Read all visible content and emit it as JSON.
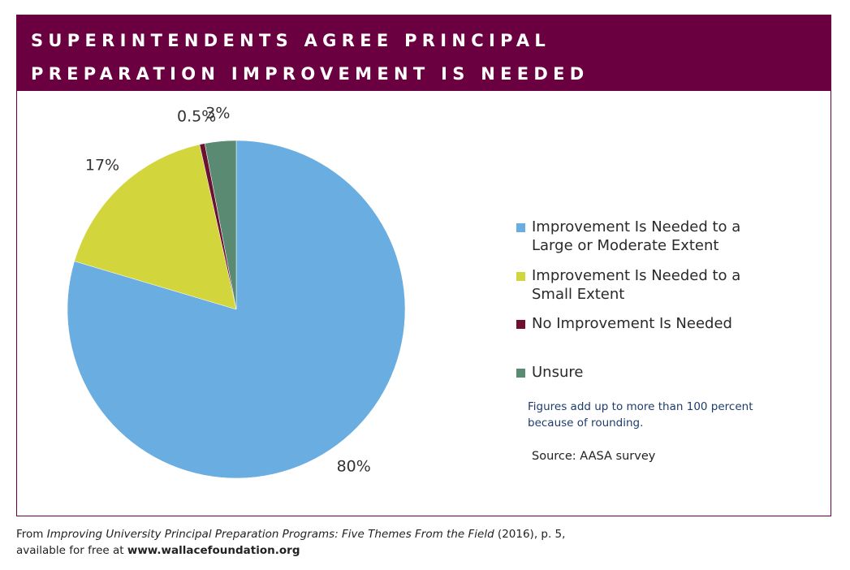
{
  "chart_data": {
    "type": "pie",
    "title": "SUPERINTENDENTS AGREE PRINCIPAL PREPARATION IMPROVEMENT IS NEEDED",
    "categories": [
      "Improvement Is Needed to a Large or Moderate Extent",
      "Improvement Is Needed to a Small Extent",
      "No Improvement Is Needed",
      "Unsure"
    ],
    "values": [
      80,
      17,
      0.5,
      3
    ],
    "value_labels": [
      "80%",
      "17%",
      "0.5%",
      "3%"
    ],
    "colors": [
      "#6aade0",
      "#d3d53c",
      "#6b1232",
      "#5b8a72"
    ],
    "note": "Figures add up to more than 100 percent because of rounding.",
    "source": "Source: AASA survey"
  },
  "footer": {
    "prefix": "From ",
    "publication": "Improving University Principal Preparation Programs: Five Themes From the Field",
    "suffix": " (2016), p. 5,",
    "availability": "available for free at ",
    "url": "www.wallacefoundation.org"
  }
}
